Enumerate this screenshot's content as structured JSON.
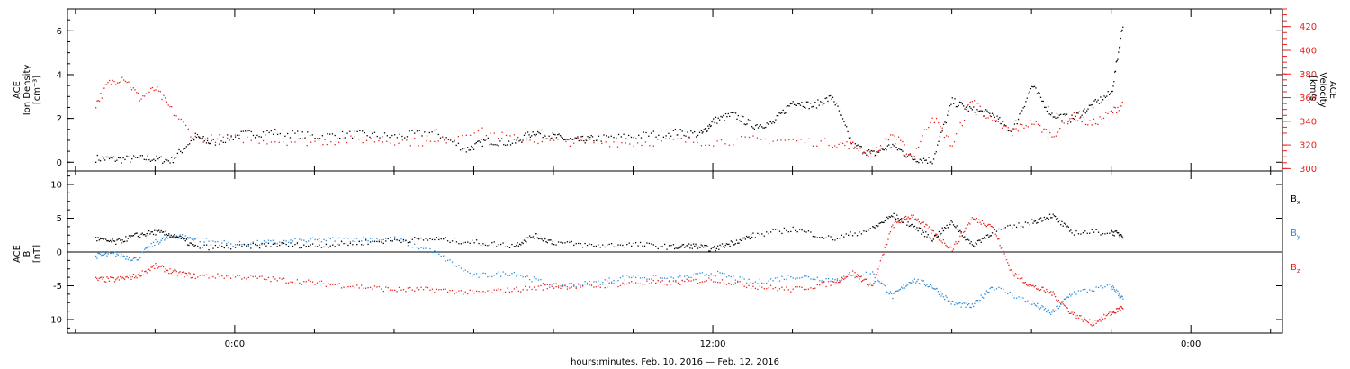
{
  "colors": {
    "black": "#000000",
    "red": "#e8231f",
    "blue": "#2a8ad8",
    "axis_right": "#e8231f"
  },
  "chart_data": [
    {
      "type": "scatter",
      "panel": "top",
      "left_axis": {
        "label_lines": [
          "ACE",
          "Ion Density",
          "[cm⁻³]"
        ],
        "ylim": [
          -0.4,
          7
        ],
        "ticks": [
          0,
          2,
          4,
          6
        ],
        "tick_labels": [
          "0",
          "2",
          "4",
          "6"
        ]
      },
      "right_axis": {
        "label_lines": [
          "ACE",
          "Velocity",
          "[km/s]"
        ],
        "ylim": [
          298,
          435
        ],
        "ticks": [
          300,
          320,
          340,
          360,
          380,
          400,
          420
        ],
        "tick_labels": [
          "300",
          "320",
          "340",
          "360",
          "380",
          "400",
          "420"
        ]
      },
      "series": [
        {
          "name": "Ion Density",
          "color": "black",
          "axis": "left",
          "x": [
            -3.5,
            -2.9,
            -2.2,
            -1.6,
            -1.0,
            -0.6,
            0.2,
            1.0,
            2.0,
            3.0,
            4.0,
            5.0,
            5.8,
            6.3,
            7.0,
            7.5,
            8.0,
            8.5,
            9.0,
            10.0,
            11.0,
            11.7,
            12.0,
            12.5,
            13.0,
            13.5,
            14.0,
            14.5,
            15.0,
            15.5,
            16.0,
            16.5,
            17.0,
            17.5,
            18.0,
            18.5,
            19.0,
            19.5,
            20.0,
            20.5,
            21.0,
            21.5,
            22.0,
            22.3
          ],
          "values": [
            0.2,
            0.15,
            0.2,
            0.1,
            1.2,
            0.9,
            1.3,
            1.4,
            1.2,
            1.3,
            1.2,
            1.4,
            0.6,
            1.0,
            0.9,
            1.4,
            1.2,
            1.0,
            1.1,
            1.2,
            1.4,
            1.3,
            1.9,
            2.2,
            1.7,
            1.8,
            2.8,
            2.6,
            3.0,
            0.8,
            0.4,
            0.8,
            0.2,
            0.1,
            2.8,
            2.4,
            2.2,
            1.4,
            3.5,
            2.2,
            2.0,
            2.6,
            3.2,
            6.5
          ]
        },
        {
          "name": "Velocity",
          "color": "red",
          "axis": "right",
          "x": [
            -3.5,
            -3.2,
            -2.8,
            -2.4,
            -2.0,
            -1.6,
            -1.0,
            0.0,
            1.0,
            2.0,
            3.0,
            4.0,
            5.0,
            6.0,
            7.0,
            8.0,
            9.0,
            10.0,
            11.0,
            12.0,
            13.0,
            14.0,
            15.0,
            15.5,
            16.0,
            16.5,
            17.0,
            17.5,
            18.0,
            18.5,
            19.0,
            19.5,
            20.0,
            20.5,
            21.0,
            21.5,
            22.0,
            22.3
          ],
          "values": [
            355,
            372,
            378,
            360,
            368,
            350,
            326,
            326,
            324,
            323,
            325,
            324,
            322,
            333,
            326,
            323,
            323,
            322,
            324,
            323,
            325,
            324,
            322,
            320,
            312,
            330,
            310,
            345,
            320,
            360,
            340,
            332,
            340,
            328,
            345,
            338,
            348,
            356
          ]
        }
      ]
    },
    {
      "type": "scatter",
      "panel": "bottom",
      "left_axis": {
        "label_lines": [
          "ACE",
          "B",
          "[nT]"
        ],
        "ylim": [
          -12,
          12
        ],
        "ticks": [
          -10,
          -5,
          0,
          5,
          10
        ],
        "tick_labels": [
          "-10",
          "-5",
          "0",
          "5",
          "10"
        ]
      },
      "series": [
        {
          "name": "Bx",
          "color": "black",
          "label": "B",
          "subscript": "x",
          "x": [
            -3.5,
            -3.0,
            -2.5,
            -2.0,
            -1.5,
            -1.0,
            0.0,
            1.0,
            2.0,
            3.0,
            4.0,
            5.0,
            6.0,
            7.0,
            7.5,
            8.0,
            9.0,
            10.0,
            11.0,
            11.5,
            12.0,
            12.5,
            13.0,
            14.0,
            15.0,
            16.0,
            16.5,
            17.0,
            17.5,
            18.0,
            18.5,
            19.0,
            20.0,
            20.5,
            21.0,
            22.0,
            22.3
          ],
          "values": [
            2.0,
            1.5,
            2.5,
            3.0,
            2.5,
            0.8,
            0.8,
            1.2,
            1.0,
            1.4,
            1.8,
            2.0,
            1.5,
            1.0,
            2.5,
            1.5,
            1.0,
            1.2,
            0.8,
            1.0,
            0.5,
            1.5,
            2.5,
            3.5,
            2.0,
            3.5,
            5.5,
            4.0,
            2.0,
            4.5,
            1.0,
            3.0,
            4.5,
            5.5,
            3.0,
            3.0,
            2.5
          ]
        },
        {
          "name": "By",
          "color": "blue",
          "label": "B",
          "subscript": "y",
          "x": [
            -3.5,
            -3.0,
            -2.5,
            -2.0,
            -1.5,
            -1.0,
            0.0,
            1.0,
            2.0,
            3.0,
            4.0,
            5.0,
            6.0,
            7.0,
            8.0,
            9.0,
            10.0,
            11.0,
            12.0,
            13.0,
            14.0,
            15.0,
            16.0,
            16.5,
            17.0,
            17.5,
            18.0,
            18.5,
            19.0,
            20.0,
            20.5,
            21.0,
            22.0,
            22.3
          ],
          "values": [
            -0.5,
            -0.2,
            -1.0,
            1.5,
            2.5,
            2.0,
            1.2,
            1.5,
            1.8,
            2.0,
            2.0,
            0.0,
            -3.5,
            -3.0,
            -5.0,
            -4.5,
            -3.5,
            -4.0,
            -3.0,
            -4.5,
            -3.5,
            -4.0,
            -3.0,
            -6.5,
            -4.0,
            -5.0,
            -7.5,
            -8.0,
            -5.0,
            -7.5,
            -9.0,
            -6.0,
            -5.0,
            -7.0
          ]
        },
        {
          "name": "Bz",
          "color": "red",
          "label": "B",
          "subscript": "z",
          "x": [
            -3.5,
            -3.0,
            -2.5,
            -2.0,
            -1.5,
            -1.0,
            0.0,
            1.0,
            2.0,
            3.0,
            4.0,
            5.0,
            6.0,
            7.0,
            8.0,
            9.0,
            10.0,
            11.0,
            12.0,
            13.0,
            14.0,
            15.0,
            15.5,
            16.0,
            16.5,
            17.0,
            17.5,
            18.0,
            18.5,
            19.0,
            19.5,
            20.0,
            20.5,
            21.0,
            21.5,
            22.0,
            22.3
          ],
          "values": [
            -4.0,
            -4.0,
            -3.5,
            -2.0,
            -3.0,
            -3.5,
            -3.5,
            -4.0,
            -4.5,
            -5.0,
            -5.5,
            -5.5,
            -6.0,
            -5.5,
            -5.0,
            -5.0,
            -4.5,
            -4.5,
            -4.0,
            -5.0,
            -5.5,
            -4.5,
            -3.0,
            -5.0,
            4.0,
            5.5,
            3.0,
            0.5,
            5.0,
            4.0,
            -3.0,
            -5.0,
            -6.0,
            -9.0,
            -10.5,
            -9.0,
            -8.0
          ]
        }
      ]
    }
  ],
  "x_axis": {
    "range": [
      -4.2,
      26.3
    ],
    "major_ticks": [
      0,
      12,
      24
    ],
    "tick_labels": [
      "0:00",
      "12:00",
      "0:00"
    ],
    "minor_tick_step": 2,
    "title": "hours:minutes, Feb. 10, 2016 — Feb. 12, 2016"
  }
}
